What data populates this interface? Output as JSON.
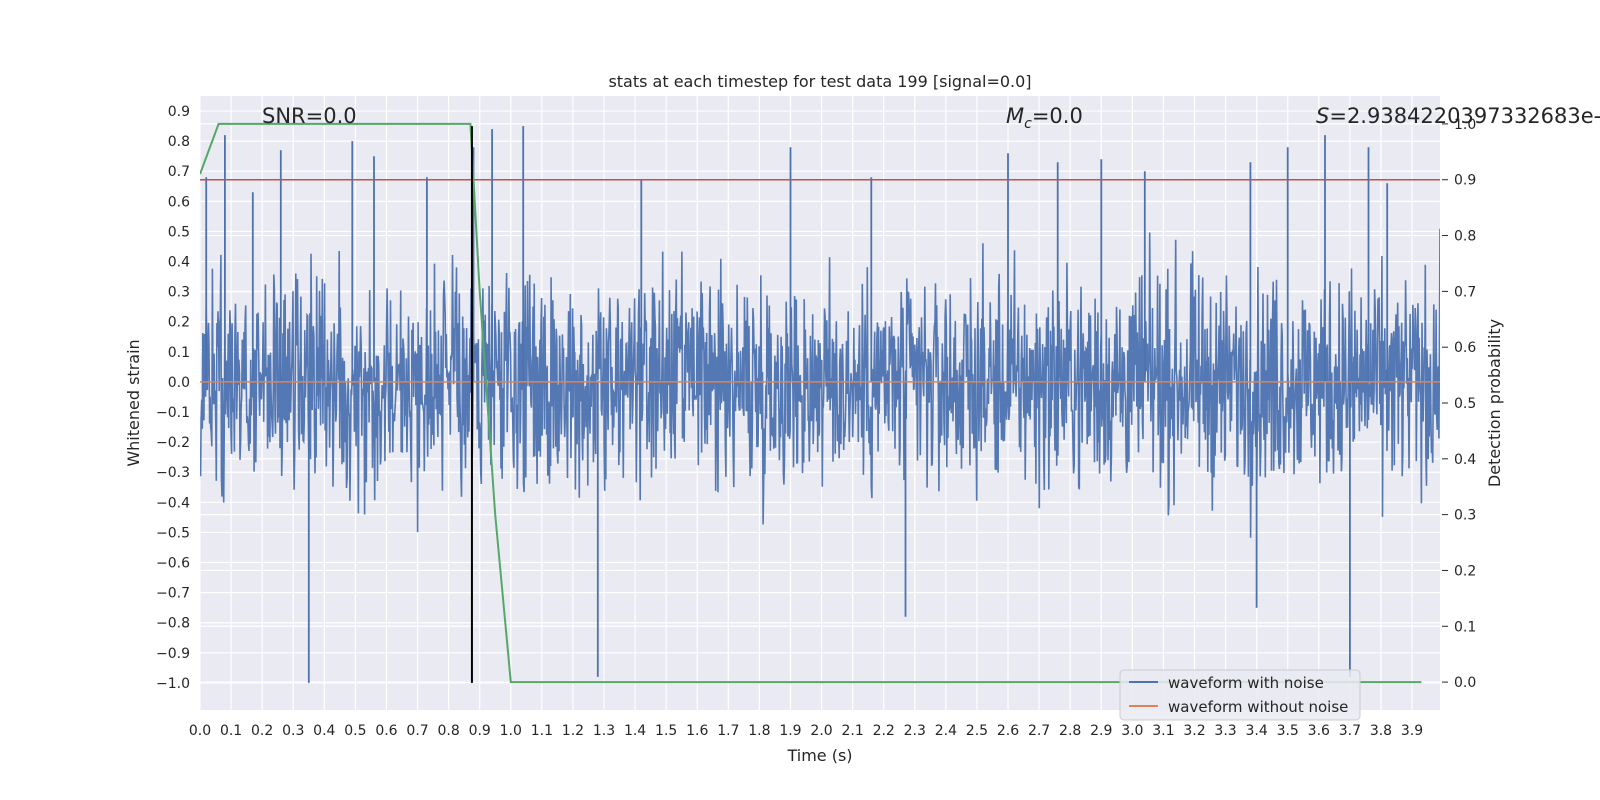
{
  "chart_data": {
    "type": "line",
    "title": "stats at each timestep for test data 199 [signal=0.0]",
    "xlabel": "Time (s)",
    "ylabel": "Whitened strain",
    "y2label": "Detection probability",
    "xlim": [
      0.0,
      3.99
    ],
    "ylim": [
      -1.09,
      0.95
    ],
    "y2lim": [
      -0.05,
      1.05
    ],
    "x_ticks": [
      "0.0",
      "0.1",
      "0.2",
      "0.3",
      "0.4",
      "0.5",
      "0.6",
      "0.7",
      "0.8",
      "0.9",
      "1.0",
      "1.1",
      "1.2",
      "1.3",
      "1.4",
      "1.5",
      "1.6",
      "1.7",
      "1.8",
      "1.9",
      "2.0",
      "2.1",
      "2.2",
      "2.3",
      "2.4",
      "2.5",
      "2.6",
      "2.7",
      "2.8",
      "2.9",
      "3.0",
      "3.1",
      "3.2",
      "3.3",
      "3.4",
      "3.5",
      "3.6",
      "3.7",
      "3.8",
      "3.9"
    ],
    "y_ticks": [
      "0.9",
      "0.8",
      "0.7",
      "0.6",
      "0.5",
      "0.4",
      "0.3",
      "0.2",
      "0.1",
      "0.0",
      "−0.1",
      "−0.2",
      "−0.3",
      "−0.4",
      "−0.5",
      "−0.6",
      "−0.7",
      "−0.8",
      "−0.9",
      "−1.0"
    ],
    "y2_ticks": [
      "1.0",
      "0.9",
      "0.8",
      "0.7",
      "0.6",
      "0.5",
      "0.4",
      "0.3",
      "0.2",
      "0.1",
      "0.0"
    ],
    "annotations": {
      "snr": "SNR=0.0",
      "mc_symbol": "M",
      "mc_sub": "c",
      "mc_value": "=0.0",
      "s_symbol": "S",
      "s_value": "=2.938422039733​2683e-"
    },
    "series": [
      {
        "name": "waveform with noise",
        "color": "#4c72b0",
        "axis": "left",
        "description": "whitened noisy strain, ~2048 Hz samples, envelope approx ±0.4 with spikes to 0.85 and -1.0",
        "spikes": [
          [
            0.02,
            0.68
          ],
          [
            0.08,
            0.82
          ],
          [
            0.17,
            0.63
          ],
          [
            0.26,
            0.77
          ],
          [
            0.35,
            -1.0
          ],
          [
            0.49,
            0.8
          ],
          [
            0.56,
            0.75
          ],
          [
            0.73,
            0.68
          ],
          [
            0.88,
            0.78
          ],
          [
            0.94,
            0.84
          ],
          [
            1.04,
            0.85
          ],
          [
            1.28,
            -0.98
          ],
          [
            1.42,
            0.67
          ],
          [
            1.9,
            0.78
          ],
          [
            2.16,
            0.68
          ],
          [
            2.27,
            -0.78
          ],
          [
            2.6,
            0.76
          ],
          [
            2.76,
            0.73
          ],
          [
            2.9,
            0.74
          ],
          [
            3.04,
            0.7
          ],
          [
            3.38,
            0.73
          ],
          [
            3.4,
            -0.75
          ],
          [
            3.5,
            0.78
          ],
          [
            3.62,
            0.82
          ],
          [
            3.7,
            -0.98
          ],
          [
            3.76,
            0.78
          ],
          [
            3.82,
            0.66
          ]
        ]
      },
      {
        "name": "waveform without noise",
        "color": "#dd8452",
        "axis": "left",
        "x": [
          0.0,
          3.99
        ],
        "y": [
          0.0,
          0.0
        ]
      },
      {
        "name": "detection probability",
        "color": "#55a868",
        "axis": "right",
        "x": [
          0.0,
          0.06,
          0.12,
          0.87,
          0.9,
          0.95,
          1.0,
          3.93
        ],
        "y": [
          0.91,
          1.0,
          1.0,
          1.0,
          0.7,
          0.3,
          0.0,
          0.0
        ]
      },
      {
        "name": "threshold",
        "color": "#c44e52",
        "axis": "right",
        "x": [
          0.0,
          3.99
        ],
        "y": [
          0.9,
          0.9
        ]
      },
      {
        "name": "detection time",
        "color": "#000000",
        "axis": "left",
        "x": [
          0.875,
          0.875
        ],
        "y": [
          -1.0,
          0.85
        ]
      }
    ],
    "legend": {
      "position": "lower-right",
      "entries": [
        "waveform with noise",
        "waveform without noise"
      ]
    },
    "colors": {
      "background": "#eaeaf2",
      "grid": "#ffffff",
      "noisy": "#4c72b0",
      "clean": "#dd8452",
      "prob": "#55a868",
      "threshold": "#c44e52",
      "marker": "#000000"
    }
  }
}
